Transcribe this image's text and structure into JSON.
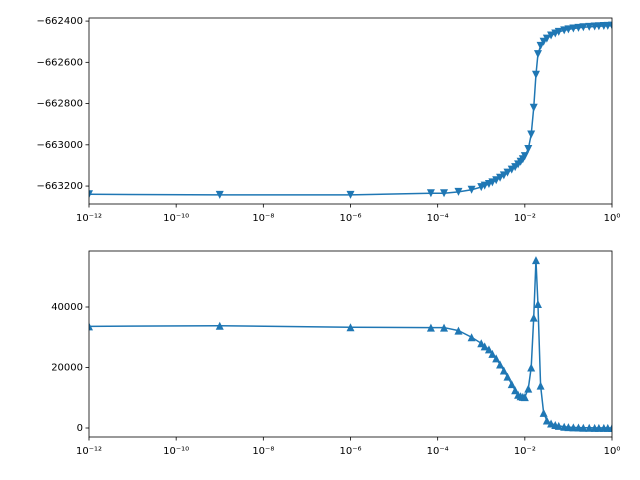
{
  "chart_data": [
    {
      "type": "line",
      "log_x": true,
      "marker": "triangle-down",
      "x": [
        1e-12,
        1e-09,
        1e-06,
        7e-05,
        0.00014,
        0.0003,
        0.0006,
        0.001,
        0.0012,
        0.0015,
        0.0018,
        0.0022,
        0.0027,
        0.0033,
        0.004,
        0.005,
        0.006,
        0.007,
        0.008,
        0.009,
        0.01,
        0.012,
        0.014,
        0.016,
        0.018,
        0.02,
        0.023,
        0.027,
        0.032,
        0.04,
        0.05,
        0.06,
        0.08,
        0.1,
        0.13,
        0.17,
        0.22,
        0.3,
        0.4,
        0.5,
        0.65,
        0.8,
        1.0
      ],
      "series": [
        {
          "color": "#1f77b4",
          "values": [
            -663240,
            -663243,
            -663243,
            -663235,
            -663235,
            -663228,
            -663218,
            -663205,
            -663198,
            -663190,
            -663182,
            -663172,
            -663160,
            -663148,
            -663135,
            -663120,
            -663108,
            -663095,
            -663082,
            -663070,
            -663055,
            -663020,
            -662950,
            -662820,
            -662660,
            -662560,
            -662520,
            -662500,
            -662485,
            -662470,
            -662460,
            -662452,
            -662445,
            -662440,
            -662436,
            -662433,
            -662430,
            -662428,
            -662426,
            -662425,
            -662424,
            -662423,
            -662422
          ]
        }
      ],
      "xlim": [
        1e-12,
        1
      ],
      "xticks": [
        {
          "value": 1e-12,
          "label": "10⁻¹²"
        },
        {
          "value": 1e-10,
          "label": "10⁻¹⁰"
        },
        {
          "value": 1e-08,
          "label": "10⁻⁸"
        },
        {
          "value": 1e-06,
          "label": "10⁻⁶"
        },
        {
          "value": 0.0001,
          "label": "10⁻⁴"
        },
        {
          "value": 0.01,
          "label": "10⁻²"
        },
        {
          "value": 1,
          "label": "10⁰"
        }
      ],
      "ylim": [
        -663287,
        -662385
      ],
      "yticks": [
        {
          "value": -663200,
          "label": "−663200"
        },
        {
          "value": -663000,
          "label": "−663000"
        },
        {
          "value": -662800,
          "label": "−662800"
        },
        {
          "value": -662600,
          "label": "−662600"
        },
        {
          "value": -662400,
          "label": "−662400"
        }
      ]
    },
    {
      "type": "line",
      "log_x": true,
      "marker": "triangle-up",
      "x": [
        1e-12,
        1e-09,
        1e-06,
        7e-05,
        0.00014,
        0.0003,
        0.0006,
        0.001,
        0.0012,
        0.0015,
        0.0018,
        0.0022,
        0.0027,
        0.0033,
        0.004,
        0.005,
        0.006,
        0.007,
        0.008,
        0.009,
        0.01,
        0.012,
        0.014,
        0.016,
        0.018,
        0.02,
        0.023,
        0.027,
        0.032,
        0.04,
        0.05,
        0.06,
        0.08,
        0.1,
        0.13,
        0.17,
        0.22,
        0.3,
        0.4,
        0.5,
        0.65,
        0.8,
        1.0
      ],
      "series": [
        {
          "color": "#1f77b4",
          "values": [
            33600,
            33800,
            33300,
            33200,
            33200,
            32200,
            30000,
            28000,
            27000,
            26000,
            24500,
            23000,
            21000,
            19000,
            17000,
            14500,
            12500,
            11000,
            10500,
            10300,
            10200,
            13000,
            20000,
            36500,
            55500,
            41000,
            14000,
            5000,
            2500,
            1500,
            1000,
            700,
            400,
            300,
            200,
            150,
            100,
            80,
            60,
            50,
            40,
            30,
            20
          ]
        }
      ],
      "xlim": [
        1e-12,
        1
      ],
      "xticks": [
        {
          "value": 1e-12,
          "label": "10⁻¹²"
        },
        {
          "value": 1e-10,
          "label": "10⁻¹⁰"
        },
        {
          "value": 1e-08,
          "label": "10⁻⁸"
        },
        {
          "value": 1e-06,
          "label": "10⁻⁶"
        },
        {
          "value": 0.0001,
          "label": "10⁻⁴"
        },
        {
          "value": 0.01,
          "label": "10⁻²"
        },
        {
          "value": 1,
          "label": "10⁰"
        }
      ],
      "ylim": [
        -2975,
        58513
      ],
      "yticks": [
        0,
        20000,
        40000
      ]
    }
  ]
}
